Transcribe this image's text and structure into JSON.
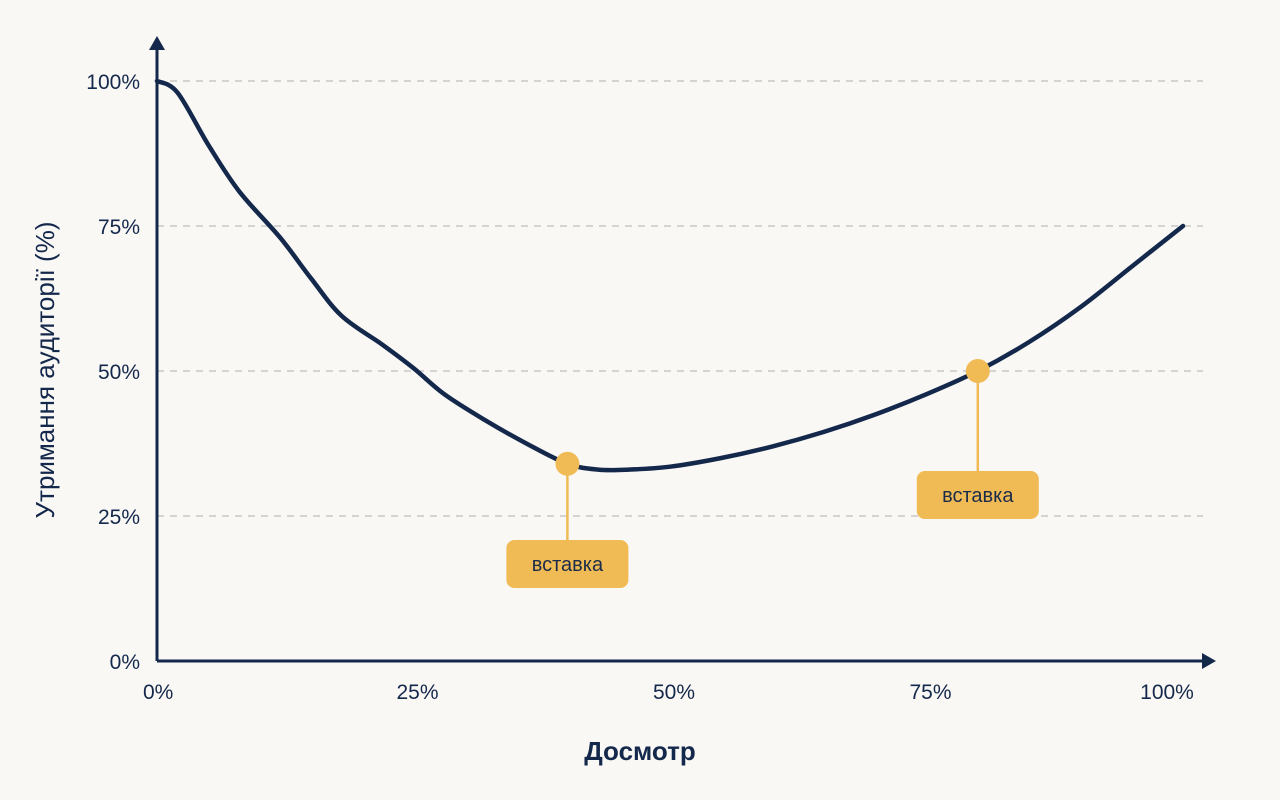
{
  "chart_data": {
    "type": "line",
    "title": "",
    "xlabel": "Досмотр",
    "ylabel": "Утримання аудиторії (%)",
    "xlim": [
      0,
      100
    ],
    "ylim": [
      0,
      100
    ],
    "x_ticks": [
      0,
      25,
      50,
      75,
      100
    ],
    "y_ticks": [
      0,
      25,
      50,
      75,
      100
    ],
    "x_tick_labels": [
      "0%",
      "25%",
      "50%",
      "75%",
      "100%"
    ],
    "y_tick_labels": [
      "0%",
      "25%",
      "50%",
      "75%",
      "100%"
    ],
    "grid": "horizontal dashed",
    "series": [
      {
        "values_x": [
          0,
          2,
          5,
          8,
          12,
          15,
          18,
          22,
          25,
          28,
          32,
          36,
          40,
          43,
          46,
          50,
          55,
          60,
          65,
          70,
          75,
          80,
          85,
          90,
          95,
          100
        ],
        "values_y": [
          100,
          98,
          89,
          81,
          73,
          66,
          59.5,
          54.5,
          50.5,
          46,
          41.5,
          37.5,
          34,
          33,
          33,
          33.5,
          35,
          37,
          39.5,
          42.5,
          46,
          50,
          55,
          61,
          68,
          75
        ]
      }
    ],
    "annotations": [
      {
        "x": 40,
        "y": 34,
        "label": "вставка"
      },
      {
        "x": 80,
        "y": 50,
        "label": "вставка"
      }
    ]
  },
  "colors": {
    "background": "#f9f8f5",
    "axis": "#14284b",
    "line": "#14284b",
    "grid": "#c8c8c8",
    "marker": "#f0bb55",
    "callout": "#f0bb55",
    "callout_text": "#1b2c4a"
  }
}
